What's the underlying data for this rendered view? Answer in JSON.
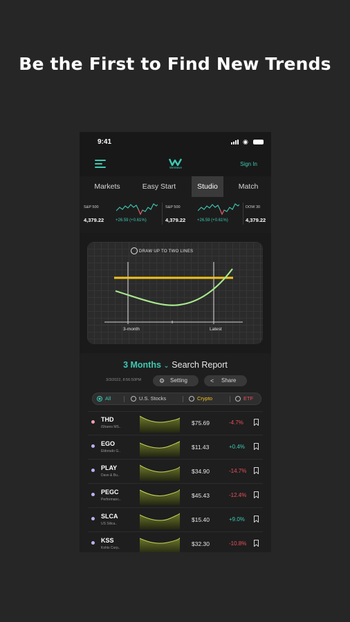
{
  "headline": "Be the First to Find New Trends",
  "status_bar": {
    "time": "9:41"
  },
  "app_bar": {
    "logo_text": "WeWave",
    "sign_in": "Sign In"
  },
  "tabs": [
    {
      "label": "Markets",
      "active": false
    },
    {
      "label": "Easy Start",
      "active": false
    },
    {
      "label": "Studio",
      "active": true
    },
    {
      "label": "Match",
      "active": false
    }
  ],
  "ticker": [
    {
      "name": "S&P 500",
      "price": "4,379.22",
      "change": "+26.59 (+0.61%)"
    },
    {
      "name": "S&P 500",
      "price": "4,379.22",
      "change": "+26.59 (+0.61%)"
    },
    {
      "name": "DOW 30",
      "price": "4,379.22"
    }
  ],
  "draw_panel": {
    "instruction": "DRAW UP TO TWO LINES",
    "axis_left": "3-month",
    "axis_right": "Latest"
  },
  "report": {
    "period": "3 Months",
    "title": "Search Report",
    "date": "3/3/2022, 8:56:50PM",
    "setting_label": "Setting",
    "share_label": "Share"
  },
  "filters": [
    {
      "label": "All",
      "active": true
    },
    {
      "label": "U.S. Stocks",
      "active": false
    },
    {
      "label": "Crypto",
      "active": false
    },
    {
      "label": "ETF",
      "active": false
    }
  ],
  "colors": {
    "accent": "#3ec9b3",
    "positive": "#3ec9b3",
    "negative": "#e9505b",
    "draw_line_yellow": "#f2c21b",
    "draw_curve_green": "#a6e88d",
    "crypto_label": "#f2c21b",
    "etf_label": "#e9505b"
  },
  "rows": [
    {
      "symbol": "THD",
      "company": "iShares MS..",
      "price": "$75.69",
      "change": "-4.7%",
      "positive": false,
      "bullet": "#f0a0b4"
    },
    {
      "symbol": "EGO",
      "company": "Eldorado G..",
      "price": "$11.43",
      "change": "+0.4%",
      "positive": true,
      "bullet": "#b9b3f2"
    },
    {
      "symbol": "PLAY",
      "company": "Dave & Bu..",
      "price": "$34.90",
      "change": "-14.7%",
      "positive": false,
      "bullet": "#b9b3f2"
    },
    {
      "symbol": "PEGC",
      "company": "Performanc..",
      "price": "$45.43",
      "change": "-12.4%",
      "positive": false,
      "bullet": "#b9b3f2"
    },
    {
      "symbol": "SLCA",
      "company": "US Silica..",
      "price": "$15.40",
      "change": "+9.0%",
      "positive": true,
      "bullet": "#b9b3f2"
    },
    {
      "symbol": "KSS",
      "company": "Kohls Corp..",
      "price": "$32.30",
      "change": "-10.8%",
      "positive": false,
      "bullet": "#b9b3f2"
    }
  ]
}
